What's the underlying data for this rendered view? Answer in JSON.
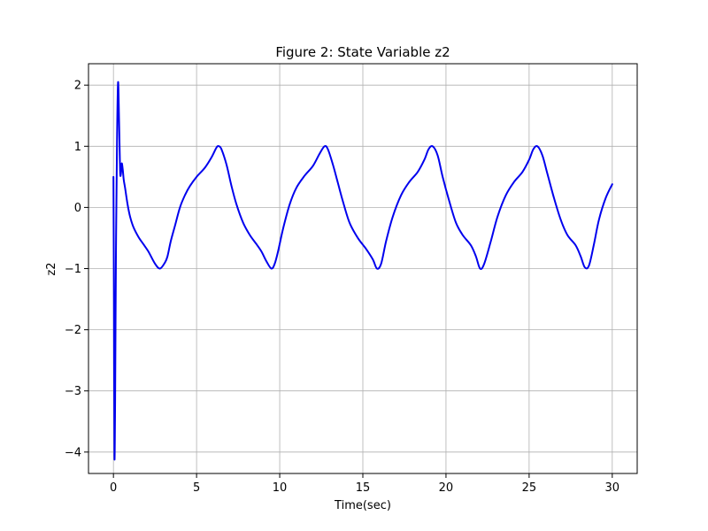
{
  "chart_data": {
    "type": "line",
    "title": "Figure 2: State Variable z2",
    "xlabel": "Time(sec)",
    "ylabel": "z2",
    "xlim": [
      -1.5,
      31.5
    ],
    "ylim": [
      -4.35,
      2.35
    ],
    "xticks": [
      0,
      5,
      10,
      15,
      20,
      25,
      30
    ],
    "yticks": [
      -4,
      -3,
      -2,
      -1,
      0,
      1,
      2
    ],
    "xtick_labels": [
      "0",
      "5",
      "10",
      "15",
      "20",
      "25",
      "30"
    ],
    "ytick_labels": [
      "−4",
      "−3",
      "−2",
      "−1",
      "0",
      "1",
      "2"
    ],
    "grid": true,
    "legend": "none",
    "series": [
      {
        "color": "#0000ee",
        "x": [
          0,
          0.03,
          0.06,
          0.1,
          0.15,
          0.22,
          0.28,
          0.34,
          0.4,
          0.45,
          0.5,
          0.56,
          0.62,
          0.7,
          0.85,
          1.0,
          1.2,
          1.5,
          1.8,
          2.1,
          2.5,
          2.8,
          3.1,
          3.25,
          3.45,
          3.7,
          4.0,
          4.3,
          4.6,
          5.0,
          5.5,
          5.9,
          6.2,
          6.35,
          6.5,
          6.8,
          7.1,
          7.4,
          7.8,
          8.2,
          8.6,
          8.9,
          9.2,
          9.5,
          9.7,
          9.9,
          10.2,
          10.6,
          11.0,
          11.5,
          12.0,
          12.4,
          12.7,
          12.9,
          13.2,
          13.5,
          13.8,
          14.2,
          14.7,
          15.2,
          15.6,
          15.85,
          16.1,
          16.4,
          16.8,
          17.3,
          17.8,
          18.3,
          18.7,
          18.95,
          19.2,
          19.5,
          19.8,
          20.2,
          20.6,
          21.0,
          21.5,
          21.8,
          22.05,
          22.3,
          22.7,
          23.1,
          23.6,
          24.1,
          24.6,
          25.0,
          25.25,
          25.5,
          25.8,
          26.1,
          26.5,
          26.9,
          27.3,
          27.8,
          28.1,
          28.35,
          28.6,
          28.9,
          29.2,
          29.6,
          30.0
        ],
        "y": [
          0.5,
          -1.5,
          -4.05,
          -3.2,
          -0.8,
          1.2,
          2.05,
          1.4,
          0.6,
          0.55,
          0.72,
          0.62,
          0.45,
          0.32,
          0.05,
          -0.15,
          -0.32,
          -0.48,
          -0.6,
          -0.72,
          -0.92,
          -1.0,
          -0.9,
          -0.8,
          -0.55,
          -0.3,
          0.0,
          0.2,
          0.35,
          0.5,
          0.65,
          0.82,
          0.98,
          1.0,
          0.95,
          0.7,
          0.35,
          0.05,
          -0.25,
          -0.45,
          -0.6,
          -0.72,
          -0.88,
          -1.0,
          -0.92,
          -0.72,
          -0.35,
          0.05,
          0.32,
          0.52,
          0.68,
          0.88,
          1.0,
          0.95,
          0.7,
          0.4,
          0.1,
          -0.25,
          -0.5,
          -0.68,
          -0.85,
          -1.0,
          -0.92,
          -0.55,
          -0.15,
          0.2,
          0.42,
          0.58,
          0.78,
          0.95,
          1.0,
          0.85,
          0.5,
          0.1,
          -0.25,
          -0.45,
          -0.62,
          -0.8,
          -1.0,
          -0.92,
          -0.55,
          -0.15,
          0.2,
          0.42,
          0.58,
          0.78,
          0.95,
          1.0,
          0.85,
          0.55,
          0.15,
          -0.2,
          -0.45,
          -0.62,
          -0.8,
          -0.98,
          -0.95,
          -0.6,
          -0.2,
          0.15,
          0.38
        ]
      }
    ]
  }
}
